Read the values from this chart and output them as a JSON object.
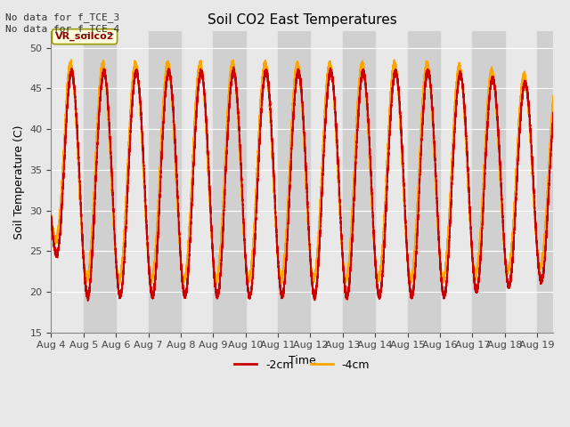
{
  "title": "Soil CO2 East Temperatures",
  "xlabel": "Time",
  "ylabel": "Soil Temperature (C)",
  "ylim": [
    15,
    52
  ],
  "yticks": [
    15,
    20,
    25,
    30,
    35,
    40,
    45,
    50
  ],
  "color_2cm": "#cc0000",
  "color_4cm": "#ffa500",
  "legend_label_2cm": "-2cm",
  "legend_label_4cm": "-4cm",
  "annotation_text": "No data for f_TCE_3\nNo data for f_TCE_4",
  "box_label": "VR_soilco2",
  "x_tick_labels": [
    "Aug 4",
    "Aug 5",
    "Aug 6",
    "Aug 7",
    "Aug 8",
    "Aug 9",
    "Aug 10",
    "Aug 11",
    "Aug 12",
    "Aug 13",
    "Aug 14",
    "Aug 15",
    "Aug 16",
    "Aug 17",
    "Aug 18",
    "Aug 19"
  ],
  "plot_bg_color": "#e8e8e8",
  "band_color": "#d0d0d0",
  "grid_color": "#ffffff",
  "figsize": [
    6.4,
    4.8
  ],
  "dpi": 100
}
